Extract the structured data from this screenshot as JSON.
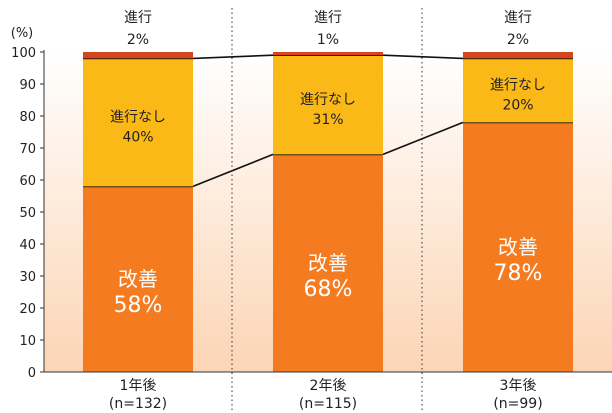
{
  "chart_data": {
    "type": "bar",
    "stacked": true,
    "percent_stacked": true,
    "yunit": "(%)",
    "ylim": [
      0,
      100
    ],
    "yticks": [
      0,
      10,
      20,
      30,
      40,
      50,
      60,
      70,
      80,
      90,
      100
    ],
    "grid": false,
    "categories": [
      {
        "name": "1年後",
        "n": "(n=132)"
      },
      {
        "name": "2年後",
        "n": "(n=115)"
      },
      {
        "name": "3年後",
        "n": "(n=99)"
      }
    ],
    "series": [
      {
        "name": "改善",
        "values": [
          58,
          68,
          78
        ],
        "labels": [
          "58%",
          "68%",
          "78%"
        ],
        "color": "#F47B20",
        "text_color": "#ffffff"
      },
      {
        "name": "進行なし",
        "values": [
          40,
          31,
          20
        ],
        "labels": [
          "40%",
          "31%",
          "20%"
        ],
        "color": "#FBB917",
        "text_color": "#222222"
      },
      {
        "name": "進行",
        "values": [
          2,
          1,
          2
        ],
        "labels": [
          "2%",
          "1%",
          "2%"
        ],
        "color": "#D4471E",
        "text_color": "#222222"
      }
    ],
    "background_gradient": [
      "#ffffff",
      "#FCD5B5"
    ],
    "divider_style": "dotted"
  }
}
